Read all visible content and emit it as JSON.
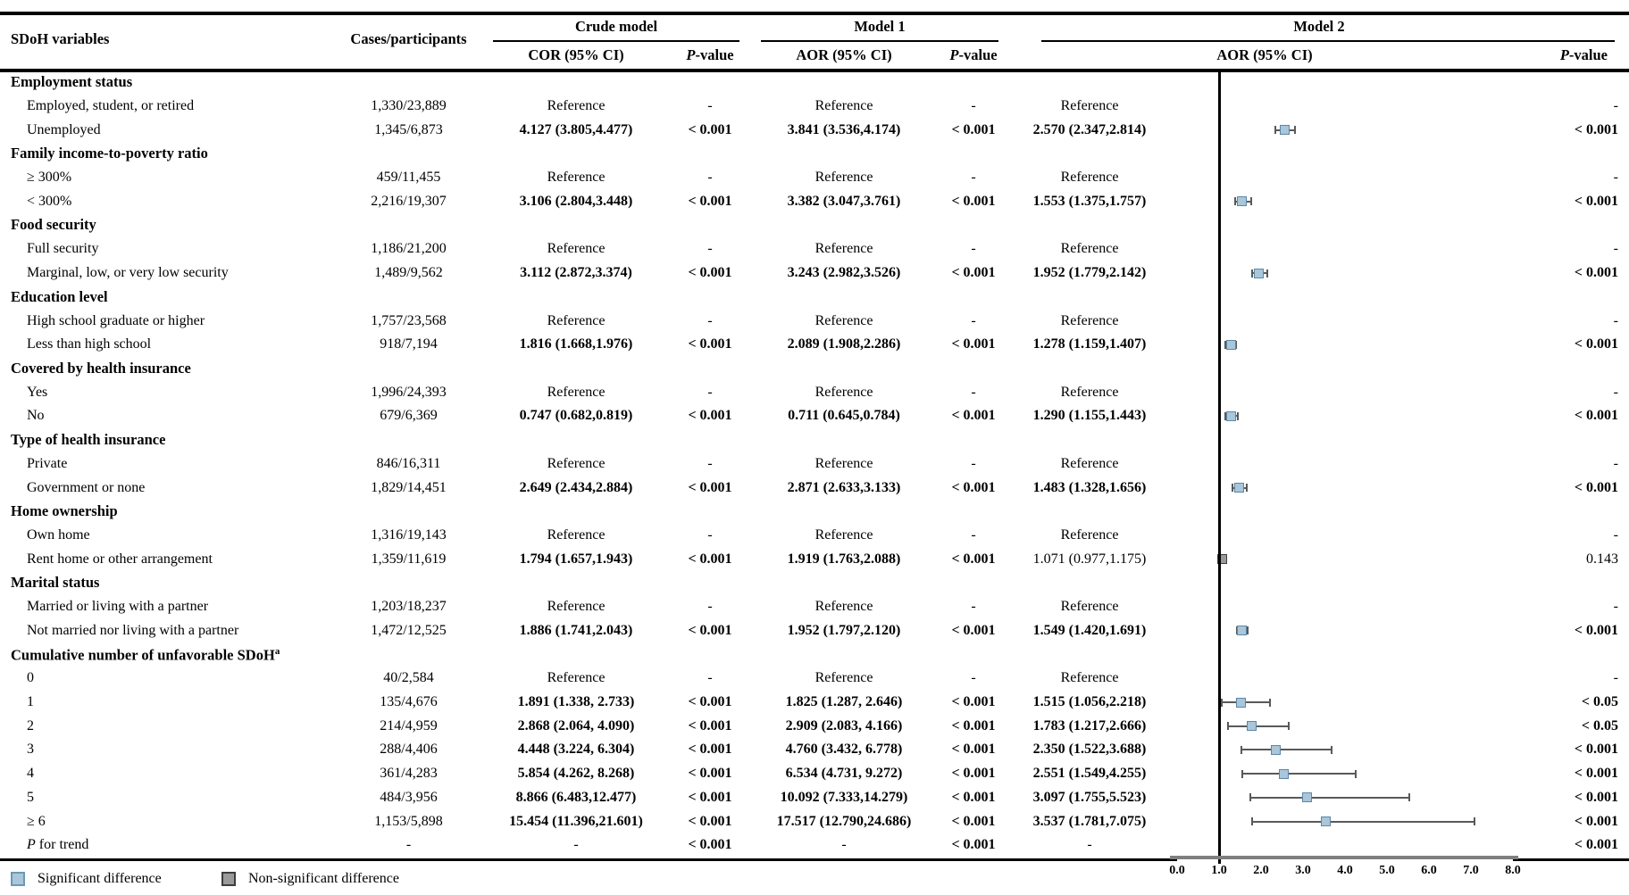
{
  "header": {
    "sdoh": "SDoH variables",
    "cases": "Cases/participants",
    "crude": {
      "label": "Crude model",
      "or": "COR (95% CI)",
      "p": "P-value"
    },
    "m1": {
      "label": "Model 1",
      "or": "AOR (95% CI)",
      "p": "P-value"
    },
    "m2": {
      "label": "Model 2",
      "or": "AOR (95% CI)",
      "p": "P-value"
    }
  },
  "axis": {
    "min": 0,
    "max": 8,
    "ticks": [
      "0.0",
      "1.0",
      "2.0",
      "3.0",
      "4.0",
      "5.0",
      "6.0",
      "7.0",
      "8.0"
    ],
    "reference_x": 1.0
  },
  "legend": {
    "items": [
      {
        "label": "Significant difference",
        "fill": "#a9c6da",
        "border": "#6d98b4"
      },
      {
        "label": "Non-significant difference",
        "fill": "#9a9a9a",
        "border": "#3d3d3d"
      }
    ]
  },
  "colors": {
    "whisker": "#595959",
    "axis_line": "#7f7f7f",
    "reference_line": "#000000",
    "sig_fill": "#a9c6da",
    "sig_border": "#5d87a6",
    "ns_fill": "#9a9a9a",
    "ns_border": "#3d3d3d"
  },
  "rows": [
    {
      "kind": "cat",
      "label": "Employment status"
    },
    {
      "kind": "item",
      "label": "Employed, student, or retired",
      "cases": "1,330/23,889",
      "crude_or": "Reference",
      "crude_p": "-",
      "m1_or": "Reference",
      "m1_p": "-",
      "m2_or": "Reference",
      "m2_p": "-"
    },
    {
      "kind": "item",
      "label": "Unemployed",
      "cases": "1,345/6,873",
      "crude_or": "4.127 (3.805,4.477)",
      "crude_p": "< 0.001",
      "m1_or": "3.841 (3.536,4.174)",
      "m1_p": "< 0.001",
      "m2_or": "2.570 (2.347,2.814)",
      "m2_p": "< 0.001",
      "forest": {
        "est": 2.57,
        "lo": 2.347,
        "hi": 2.814,
        "sig": true
      }
    },
    {
      "kind": "cat",
      "label": "Family income-to-poverty ratio"
    },
    {
      "kind": "item",
      "label": "≥ 300%",
      "cases": "459/11,455",
      "crude_or": "Reference",
      "crude_p": "-",
      "m1_or": "Reference",
      "m1_p": "-",
      "m2_or": "Reference",
      "m2_p": "-"
    },
    {
      "kind": "item",
      "label": "< 300%",
      "cases": "2,216/19,307",
      "crude_or": "3.106 (2.804,3.448)",
      "crude_p": "< 0.001",
      "m1_or": "3.382 (3.047,3.761)",
      "m1_p": "< 0.001",
      "m2_or": "1.553 (1.375,1.757)",
      "m2_p": "< 0.001",
      "forest": {
        "est": 1.553,
        "lo": 1.375,
        "hi": 1.757,
        "sig": true
      }
    },
    {
      "kind": "cat",
      "label": "Food security"
    },
    {
      "kind": "item",
      "label": "Full security",
      "cases": "1,186/21,200",
      "crude_or": "Reference",
      "crude_p": "-",
      "m1_or": "Reference",
      "m1_p": "-",
      "m2_or": "Reference",
      "m2_p": "-"
    },
    {
      "kind": "item",
      "label": "Marginal, low, or very low security",
      "cases": "1,489/9,562",
      "crude_or": "3.112 (2.872,3.374)",
      "crude_p": "< 0.001",
      "m1_or": "3.243 (2.982,3.526)",
      "m1_p": "< 0.001",
      "m2_or": "1.952 (1.779,2.142)",
      "m2_p": "< 0.001",
      "forest": {
        "est": 1.952,
        "lo": 1.779,
        "hi": 2.142,
        "sig": true
      }
    },
    {
      "kind": "cat",
      "label": "Education level"
    },
    {
      "kind": "item",
      "label": "High school graduate or higher",
      "cases": "1,757/23,568",
      "crude_or": "Reference",
      "crude_p": "-",
      "m1_or": "Reference",
      "m1_p": "-",
      "m2_or": "Reference",
      "m2_p": "-"
    },
    {
      "kind": "item",
      "label": "Less than high school",
      "cases": "918/7,194",
      "crude_or": "1.816 (1.668,1.976)",
      "crude_p": "< 0.001",
      "m1_or": "2.089 (1.908,2.286)",
      "m1_p": "< 0.001",
      "m2_or": "1.278 (1.159,1.407)",
      "m2_p": "< 0.001",
      "forest": {
        "est": 1.278,
        "lo": 1.159,
        "hi": 1.407,
        "sig": true
      }
    },
    {
      "kind": "cat",
      "label": "Covered by health insurance"
    },
    {
      "kind": "item",
      "label": "Yes",
      "cases": "1,996/24,393",
      "crude_or": "Reference",
      "crude_p": "-",
      "m1_or": "Reference",
      "m1_p": "-",
      "m2_or": "Reference",
      "m2_p": "-"
    },
    {
      "kind": "item",
      "label": "No",
      "cases": "679/6,369",
      "crude_or": "0.747 (0.682,0.819)",
      "crude_p": "< 0.001",
      "m1_or": "0.711 (0.645,0.784)",
      "m1_p": "< 0.001",
      "m2_or": "1.290 (1.155,1.443)",
      "m2_p": "< 0.001",
      "forest": {
        "est": 1.29,
        "lo": 1.155,
        "hi": 1.443,
        "sig": true
      }
    },
    {
      "kind": "cat",
      "label": "Type of health insurance"
    },
    {
      "kind": "item",
      "label": "Private",
      "cases": "846/16,311",
      "crude_or": "Reference",
      "crude_p": "-",
      "m1_or": "Reference",
      "m1_p": "-",
      "m2_or": "Reference",
      "m2_p": "-"
    },
    {
      "kind": "item",
      "label": "Government or none",
      "cases": "1,829/14,451",
      "crude_or": "2.649 (2.434,2.884)",
      "crude_p": "< 0.001",
      "m1_or": "2.871 (2.633,3.133)",
      "m1_p": "< 0.001",
      "m2_or": "1.483 (1.328,1.656)",
      "m2_p": "< 0.001",
      "forest": {
        "est": 1.483,
        "lo": 1.328,
        "hi": 1.656,
        "sig": true
      }
    },
    {
      "kind": "cat",
      "label": "Home ownership"
    },
    {
      "kind": "item",
      "label": "Own home",
      "cases": "1,316/19,143",
      "crude_or": "Reference",
      "crude_p": "-",
      "m1_or": "Reference",
      "m1_p": "-",
      "m2_or": "Reference",
      "m2_p": "-"
    },
    {
      "kind": "item",
      "label": "Rent home or other arrangement",
      "cases": "1,359/11,619",
      "crude_or": "1.794 (1.657,1.943)",
      "crude_p": "< 0.001",
      "m1_or": "1.919 (1.763,2.088)",
      "m1_p": "< 0.001",
      "m2_or": "1.071 (0.977,1.175)",
      "m2_p": "0.143",
      "forest": {
        "est": 1.071,
        "lo": 0.977,
        "hi": 1.175,
        "sig": false
      }
    },
    {
      "kind": "cat",
      "label": "Marital status"
    },
    {
      "kind": "item",
      "label": "Married or living with a partner",
      "cases": "1,203/18,237",
      "crude_or": "Reference",
      "crude_p": "-",
      "m1_or": "Reference",
      "m1_p": "-",
      "m2_or": "Reference",
      "m2_p": "-"
    },
    {
      "kind": "item",
      "label": "Not married nor living with a partner",
      "cases": "1,472/12,525",
      "crude_or": "1.886 (1.741,2.043)",
      "crude_p": "< 0.001",
      "m1_or": "1.952 (1.797,2.120)",
      "m1_p": "< 0.001",
      "m2_or": "1.549 (1.420,1.691)",
      "m2_p": "< 0.001",
      "forest": {
        "est": 1.549,
        "lo": 1.42,
        "hi": 1.691,
        "sig": true
      }
    },
    {
      "kind": "cat",
      "label": "Cumulative number of unfavorable SDoH",
      "sup": "a"
    },
    {
      "kind": "item",
      "label": "0",
      "cases": "40/2,584",
      "crude_or": "Reference",
      "crude_p": "-",
      "m1_or": "Reference",
      "m1_p": "-",
      "m2_or": "Reference",
      "m2_p": "-"
    },
    {
      "kind": "item",
      "label": "1",
      "cases": "135/4,676",
      "crude_or": "1.891 (1.338, 2.733)",
      "crude_p": "< 0.001",
      "m1_or": "1.825 (1.287, 2.646)",
      "m1_p": "< 0.001",
      "m2_or": "1.515 (1.056,2.218)",
      "m2_p": "< 0.05",
      "forest": {
        "est": 1.515,
        "lo": 1.056,
        "hi": 2.218,
        "sig": true
      }
    },
    {
      "kind": "item",
      "label": "2",
      "cases": "214/4,959",
      "crude_or": "2.868 (2.064, 4.090)",
      "crude_p": "< 0.001",
      "m1_or": "2.909 (2.083, 4.166)",
      "m1_p": "< 0.001",
      "m2_or": "1.783 (1.217,2.666)",
      "m2_p": "< 0.05",
      "forest": {
        "est": 1.783,
        "lo": 1.217,
        "hi": 2.666,
        "sig": true
      }
    },
    {
      "kind": "item",
      "label": "3",
      "cases": "288/4,406",
      "crude_or": "4.448 (3.224, 6.304)",
      "crude_p": "< 0.001",
      "m1_or": "4.760 (3.432, 6.778)",
      "m1_p": "< 0.001",
      "m2_or": "2.350 (1.522,3.688)",
      "m2_p": "< 0.001",
      "forest": {
        "est": 2.35,
        "lo": 1.522,
        "hi": 3.688,
        "sig": true
      }
    },
    {
      "kind": "item",
      "label": "4",
      "cases": "361/4,283",
      "crude_or": "5.854 (4.262, 8.268)",
      "crude_p": "< 0.001",
      "m1_or": "6.534 (4.731, 9.272)",
      "m1_p": "< 0.001",
      "m2_or": "2.551 (1.549,4.255)",
      "m2_p": "< 0.001",
      "forest": {
        "est": 2.551,
        "lo": 1.549,
        "hi": 4.255,
        "sig": true
      }
    },
    {
      "kind": "item",
      "label": "5",
      "cases": "484/3,956",
      "crude_or": "8.866 (6.483,12.477)",
      "crude_p": "< 0.001",
      "m1_or": "10.092 (7.333,14.279)",
      "m1_p": "< 0.001",
      "m2_or": "3.097 (1.755,5.523)",
      "m2_p": "< 0.001",
      "forest": {
        "est": 3.097,
        "lo": 1.755,
        "hi": 5.523,
        "sig": true
      }
    },
    {
      "kind": "item",
      "label": "≥ 6",
      "cases": "1,153/5,898",
      "crude_or": "15.454 (11.396,21.601)",
      "crude_p": "< 0.001",
      "m1_or": "17.517 (12.790,24.686)",
      "m1_p": "< 0.001",
      "m2_or": "3.537 (1.781,7.075)",
      "m2_p": "< 0.001",
      "forest": {
        "est": 3.537,
        "lo": 1.781,
        "hi": 7.075,
        "sig": true
      }
    },
    {
      "kind": "trend",
      "label": "P for trend",
      "cases": "-",
      "crude_or": "-",
      "crude_p": "< 0.001",
      "m1_or": "-",
      "m1_p": "< 0.001",
      "m2_or": "-",
      "m2_p": "< 0.001"
    }
  ],
  "chart_data": {
    "type": "scatter",
    "title": "Model 2 AOR (95% CI) forest plot",
    "xlabel": "AOR (95% CI)",
    "xlim": [
      0.0,
      8.0
    ],
    "x_ticks": [
      0.0,
      1.0,
      2.0,
      3.0,
      4.0,
      5.0,
      6.0,
      7.0,
      8.0
    ],
    "reference_line_x": 1.0,
    "points": [
      {
        "label": "Unemployed",
        "est": 2.57,
        "lo": 2.347,
        "hi": 2.814,
        "significant": true
      },
      {
        "label": "< 300%",
        "est": 1.553,
        "lo": 1.375,
        "hi": 1.757,
        "significant": true
      },
      {
        "label": "Marginal, low, or very low security",
        "est": 1.952,
        "lo": 1.779,
        "hi": 2.142,
        "significant": true
      },
      {
        "label": "Less than high school",
        "est": 1.278,
        "lo": 1.159,
        "hi": 1.407,
        "significant": true
      },
      {
        "label": "No (health insurance)",
        "est": 1.29,
        "lo": 1.155,
        "hi": 1.443,
        "significant": true
      },
      {
        "label": "Government or none",
        "est": 1.483,
        "lo": 1.328,
        "hi": 1.656,
        "significant": true
      },
      {
        "label": "Rent home or other arrangement",
        "est": 1.071,
        "lo": 0.977,
        "hi": 1.175,
        "significant": false
      },
      {
        "label": "Not married nor living with a partner",
        "est": 1.549,
        "lo": 1.42,
        "hi": 1.691,
        "significant": true
      },
      {
        "label": "Cumulative SDoH 1",
        "est": 1.515,
        "lo": 1.056,
        "hi": 2.218,
        "significant": true
      },
      {
        "label": "Cumulative SDoH 2",
        "est": 1.783,
        "lo": 1.217,
        "hi": 2.666,
        "significant": true
      },
      {
        "label": "Cumulative SDoH 3",
        "est": 2.35,
        "lo": 1.522,
        "hi": 3.688,
        "significant": true
      },
      {
        "label": "Cumulative SDoH 4",
        "est": 2.551,
        "lo": 1.549,
        "hi": 4.255,
        "significant": true
      },
      {
        "label": "Cumulative SDoH 5",
        "est": 3.097,
        "lo": 1.755,
        "hi": 5.523,
        "significant": true
      },
      {
        "label": "Cumulative SDoH ≥ 6",
        "est": 3.537,
        "lo": 1.781,
        "hi": 7.075,
        "significant": true
      }
    ],
    "legend": [
      "Significant difference",
      "Non-significant difference"
    ]
  }
}
